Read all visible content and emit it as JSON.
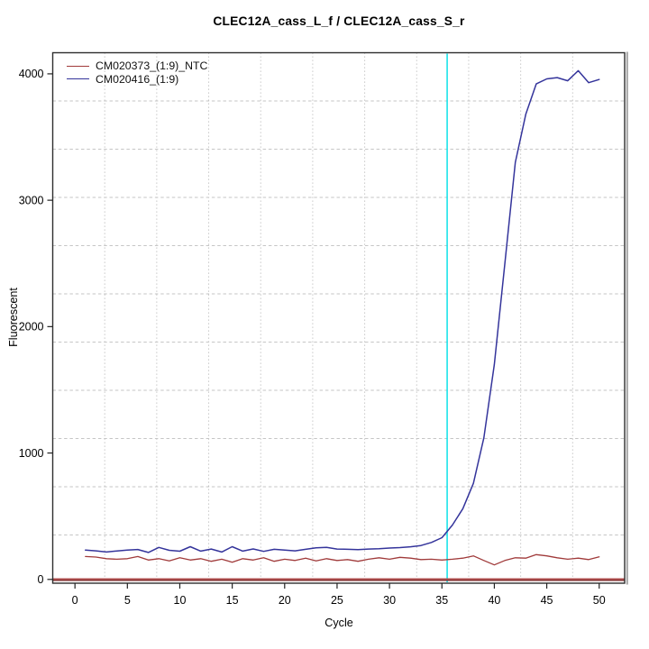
{
  "chart": {
    "title": "CLEC12A_cass_L_f / CLEC12A_cass_S_r",
    "xlabel": "Cycle",
    "ylabel": "Fluorescent"
  },
  "chart_data": {
    "type": "line",
    "title": "CLEC12A_cass_L_f / CLEC12A_cass_S_r",
    "xlabel": "Cycle",
    "ylabel": "Fluorescent",
    "xlim": [
      -2.12,
      52.43
    ],
    "ylim": [
      -30,
      4167
    ],
    "x_ticks": [
      0,
      5,
      10,
      15,
      20,
      25,
      30,
      35,
      40,
      45,
      50
    ],
    "y_ticks": [
      0,
      1000,
      2000,
      3000,
      4000
    ],
    "grid": "light dotted grid, 11x11 cells of plot box",
    "legend_position": "top-left inside plot, no border",
    "x": [
      1,
      2,
      3,
      4,
      5,
      6,
      7,
      8,
      9,
      10,
      11,
      12,
      13,
      14,
      15,
      16,
      17,
      18,
      19,
      20,
      21,
      22,
      23,
      24,
      25,
      26,
      27,
      28,
      29,
      30,
      31,
      32,
      33,
      34,
      35,
      36,
      37,
      38,
      39,
      40,
      41,
      42,
      43,
      44,
      45,
      46,
      47,
      48,
      49,
      50
    ],
    "series": [
      {
        "name": "CM020373_(1:9)_NTC",
        "color": "#a03a3a",
        "values": [
          181,
          177,
          164,
          160,
          164,
          181,
          153,
          164,
          146,
          171,
          153,
          164,
          143,
          160,
          136,
          164,
          153,
          171,
          143,
          160,
          150,
          168,
          146,
          164,
          150,
          157,
          143,
          160,
          171,
          160,
          175,
          168,
          157,
          160,
          153,
          160,
          168,
          186,
          150,
          115,
          150,
          171,
          168,
          196,
          186,
          171,
          160,
          168,
          157,
          178
        ]
      },
      {
        "name": "CM020416_(1:9)",
        "color": "#34349b",
        "values": [
          232,
          226,
          217,
          225,
          232,
          237,
          213,
          253,
          230,
          223,
          259,
          224,
          240,
          217,
          259,
          224,
          241,
          222,
          238,
          232,
          226,
          238,
          250,
          253,
          240,
          238,
          236,
          240,
          243,
          248,
          252,
          258,
          268,
          292,
          330,
          430,
          560,
          760,
          1120,
          1700,
          2500,
          3300,
          3680,
          3920,
          3960,
          3970,
          3945,
          4025,
          3930,
          3955
        ]
      }
    ],
    "threshold_line": {
      "axis": "x",
      "value": 35.5,
      "color": "#0ce1e9"
    },
    "zero_line": {
      "axis": "y",
      "value": 0,
      "color": "#8e2a2a"
    }
  }
}
